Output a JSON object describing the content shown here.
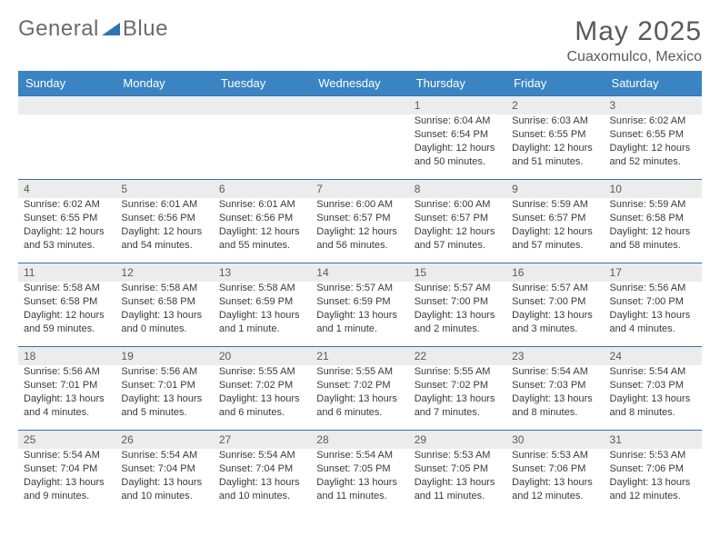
{
  "brand": {
    "part1": "General",
    "part2": "Blue",
    "logo_color": "#2f72b5"
  },
  "title": {
    "month": "May 2025",
    "location": "Cuaxomulco, Mexico"
  },
  "colors": {
    "header_bg": "#3b84c4",
    "header_text": "#ffffff",
    "daynum_bg": "#ececec",
    "week_divider": "#3b6fa0",
    "text": "#3a3a3a"
  },
  "weekdays": [
    "Sunday",
    "Monday",
    "Tuesday",
    "Wednesday",
    "Thursday",
    "Friday",
    "Saturday"
  ],
  "weeks": [
    [
      null,
      null,
      null,
      null,
      {
        "n": "1",
        "sunrise": "6:04 AM",
        "sunset": "6:54 PM",
        "daylight": "12 hours and 50 minutes."
      },
      {
        "n": "2",
        "sunrise": "6:03 AM",
        "sunset": "6:55 PM",
        "daylight": "12 hours and 51 minutes."
      },
      {
        "n": "3",
        "sunrise": "6:02 AM",
        "sunset": "6:55 PM",
        "daylight": "12 hours and 52 minutes."
      }
    ],
    [
      {
        "n": "4",
        "sunrise": "6:02 AM",
        "sunset": "6:55 PM",
        "daylight": "12 hours and 53 minutes."
      },
      {
        "n": "5",
        "sunrise": "6:01 AM",
        "sunset": "6:56 PM",
        "daylight": "12 hours and 54 minutes."
      },
      {
        "n": "6",
        "sunrise": "6:01 AM",
        "sunset": "6:56 PM",
        "daylight": "12 hours and 55 minutes."
      },
      {
        "n": "7",
        "sunrise": "6:00 AM",
        "sunset": "6:57 PM",
        "daylight": "12 hours and 56 minutes."
      },
      {
        "n": "8",
        "sunrise": "6:00 AM",
        "sunset": "6:57 PM",
        "daylight": "12 hours and 57 minutes."
      },
      {
        "n": "9",
        "sunrise": "5:59 AM",
        "sunset": "6:57 PM",
        "daylight": "12 hours and 57 minutes."
      },
      {
        "n": "10",
        "sunrise": "5:59 AM",
        "sunset": "6:58 PM",
        "daylight": "12 hours and 58 minutes."
      }
    ],
    [
      {
        "n": "11",
        "sunrise": "5:58 AM",
        "sunset": "6:58 PM",
        "daylight": "12 hours and 59 minutes."
      },
      {
        "n": "12",
        "sunrise": "5:58 AM",
        "sunset": "6:58 PM",
        "daylight": "13 hours and 0 minutes."
      },
      {
        "n": "13",
        "sunrise": "5:58 AM",
        "sunset": "6:59 PM",
        "daylight": "13 hours and 1 minute."
      },
      {
        "n": "14",
        "sunrise": "5:57 AM",
        "sunset": "6:59 PM",
        "daylight": "13 hours and 1 minute."
      },
      {
        "n": "15",
        "sunrise": "5:57 AM",
        "sunset": "7:00 PM",
        "daylight": "13 hours and 2 minutes."
      },
      {
        "n": "16",
        "sunrise": "5:57 AM",
        "sunset": "7:00 PM",
        "daylight": "13 hours and 3 minutes."
      },
      {
        "n": "17",
        "sunrise": "5:56 AM",
        "sunset": "7:00 PM",
        "daylight": "13 hours and 4 minutes."
      }
    ],
    [
      {
        "n": "18",
        "sunrise": "5:56 AM",
        "sunset": "7:01 PM",
        "daylight": "13 hours and 4 minutes."
      },
      {
        "n": "19",
        "sunrise": "5:56 AM",
        "sunset": "7:01 PM",
        "daylight": "13 hours and 5 minutes."
      },
      {
        "n": "20",
        "sunrise": "5:55 AM",
        "sunset": "7:02 PM",
        "daylight": "13 hours and 6 minutes."
      },
      {
        "n": "21",
        "sunrise": "5:55 AM",
        "sunset": "7:02 PM",
        "daylight": "13 hours and 6 minutes."
      },
      {
        "n": "22",
        "sunrise": "5:55 AM",
        "sunset": "7:02 PM",
        "daylight": "13 hours and 7 minutes."
      },
      {
        "n": "23",
        "sunrise": "5:54 AM",
        "sunset": "7:03 PM",
        "daylight": "13 hours and 8 minutes."
      },
      {
        "n": "24",
        "sunrise": "5:54 AM",
        "sunset": "7:03 PM",
        "daylight": "13 hours and 8 minutes."
      }
    ],
    [
      {
        "n": "25",
        "sunrise": "5:54 AM",
        "sunset": "7:04 PM",
        "daylight": "13 hours and 9 minutes."
      },
      {
        "n": "26",
        "sunrise": "5:54 AM",
        "sunset": "7:04 PM",
        "daylight": "13 hours and 10 minutes."
      },
      {
        "n": "27",
        "sunrise": "5:54 AM",
        "sunset": "7:04 PM",
        "daylight": "13 hours and 10 minutes."
      },
      {
        "n": "28",
        "sunrise": "5:54 AM",
        "sunset": "7:05 PM",
        "daylight": "13 hours and 11 minutes."
      },
      {
        "n": "29",
        "sunrise": "5:53 AM",
        "sunset": "7:05 PM",
        "daylight": "13 hours and 11 minutes."
      },
      {
        "n": "30",
        "sunrise": "5:53 AM",
        "sunset": "7:06 PM",
        "daylight": "13 hours and 12 minutes."
      },
      {
        "n": "31",
        "sunrise": "5:53 AM",
        "sunset": "7:06 PM",
        "daylight": "13 hours and 12 minutes."
      }
    ]
  ],
  "labels": {
    "sunrise": "Sunrise: ",
    "sunset": "Sunset: ",
    "daylight": "Daylight: "
  }
}
